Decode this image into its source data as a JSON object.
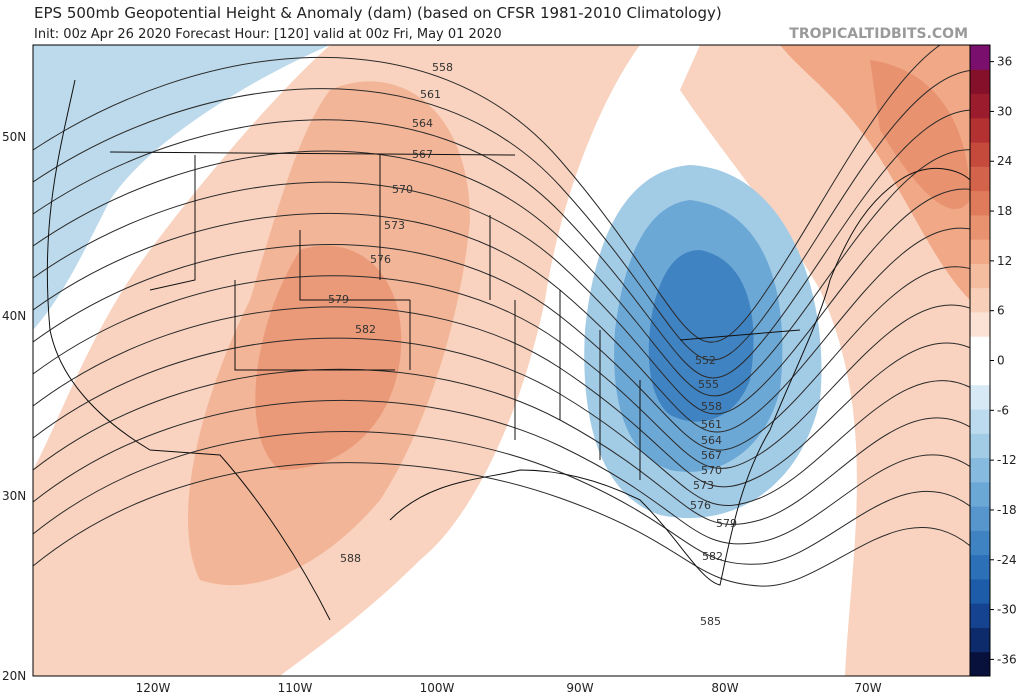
{
  "header": {
    "title": "EPS 500mb Geopotential Height & Anomaly (dam) (based on CFSR 1981-2010 Climatology)",
    "subtitle": "Init: 00z Apr 26 2020   Forecast Hour: [120]   valid at 00z Fri, May 01 2020",
    "watermark": "TROPICALTIDBITS.COM"
  },
  "map": {
    "latitude_labels": [
      "50N",
      "40N",
      "30N",
      "20N"
    ],
    "longitude_labels": [
      "120W",
      "110W",
      "100W",
      "90W",
      "80W",
      "70W"
    ],
    "contour_labels": [
      "558",
      "561",
      "564",
      "567",
      "570",
      "573",
      "576",
      "579",
      "582",
      "588",
      "552",
      "555",
      "558",
      "561",
      "564",
      "567",
      "570",
      "573",
      "576",
      "579",
      "582",
      "585"
    ]
  },
  "colorbar": {
    "lim": [
      -38,
      38
    ],
    "step": 3,
    "ticks": [
      36,
      30,
      24,
      18,
      12,
      6,
      0,
      -6,
      -12,
      -18,
      -24,
      -30,
      -36
    ],
    "colors": [
      "#08103c",
      "#0d2a6b",
      "#15438f",
      "#1d5ca8",
      "#2c70b8",
      "#3f83c2",
      "#5696cc",
      "#6ca8d6",
      "#86badf",
      "#a2cbe6",
      "#bddbee",
      "#d7e9f4",
      "#ffffff",
      "#ffffff",
      "#fbe2d4",
      "#f8d0b9",
      "#f5bd9f",
      "#f0a886",
      "#e8926f",
      "#df7b5b",
      "#d3634a",
      "#c54a3c",
      "#b33131",
      "#9b1c2c",
      "#84102a",
      "#7a0f6e"
    ]
  }
}
